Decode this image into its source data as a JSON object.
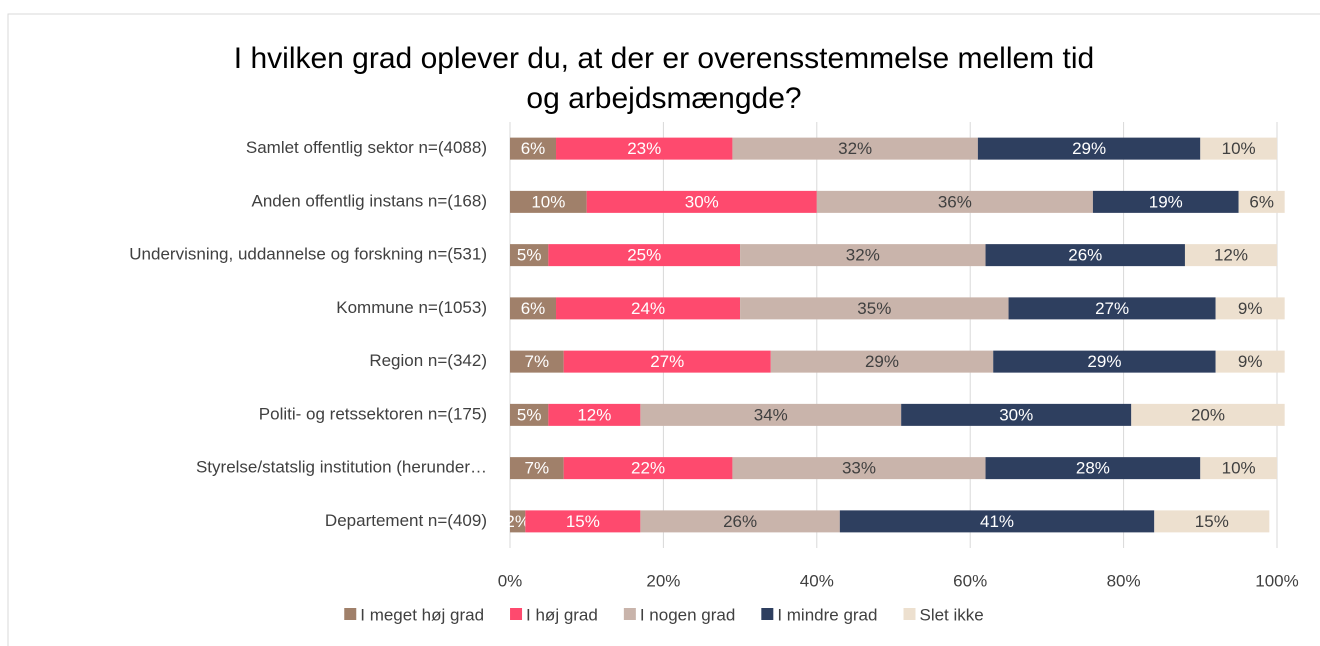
{
  "chart_data": {
    "type": "stacked-bar-horizontal",
    "title": [
      "I hvilken grad oplever du, at der er overensstemmelse mellem tid",
      "og arbejdsmængde?"
    ],
    "categories": [
      "Samlet offentlig sektor n=(4088)",
      "Anden offentlig instans n=(168)",
      "Undervisning, uddannelse og forskning n=(531)",
      "Kommune n=(1053)",
      "Region n=(342)",
      "Politi- og retssektoren n=(175)",
      "Styrelse/statslig institution (herunder…",
      "Departement n=(409)"
    ],
    "series": [
      {
        "name": "I meget høj grad",
        "color": "#a0806a",
        "values": [
          6,
          10,
          5,
          6,
          7,
          5,
          7,
          2
        ],
        "value_labels": [
          "6%",
          "10%",
          "5%",
          "6%",
          "7%",
          "5%",
          "7%",
          "2%"
        ]
      },
      {
        "name": "I høj grad",
        "color": "#fe4a6e",
        "values": [
          23,
          30,
          25,
          24,
          27,
          12,
          22,
          15
        ],
        "value_labels": [
          "23%",
          "30%",
          "25%",
          "24%",
          "27%",
          "12%",
          "22%",
          "15%"
        ]
      },
      {
        "name": "I nogen grad",
        "color": "#c9b4ab",
        "values": [
          32,
          36,
          32,
          35,
          29,
          34,
          33,
          26
        ],
        "value_labels": [
          "32%",
          "36%",
          "32%",
          "35%",
          "29%",
          "34%",
          "33%",
          "26%"
        ]
      },
      {
        "name": "I mindre grad",
        "color": "#2e3f5f",
        "values": [
          29,
          19,
          26,
          27,
          29,
          30,
          28,
          41
        ],
        "value_labels": [
          "29%",
          "19%",
          "26%",
          "27%",
          "29%",
          "30%",
          "28%",
          "41%"
        ]
      },
      {
        "name": "Slet ikke",
        "color": "#ede0cf",
        "values": [
          10,
          6,
          12,
          9,
          9,
          20,
          10,
          15
        ],
        "value_labels": [
          "10%",
          "6%",
          "12%",
          "9%",
          "9%",
          "20%",
          "10%",
          "15%"
        ]
      }
    ],
    "xlim": [
      0,
      100
    ],
    "xticks": [
      {
        "value": 0,
        "label": "0%"
      },
      {
        "value": 20,
        "label": "20%"
      },
      {
        "value": 40,
        "label": "40%"
      },
      {
        "value": 60,
        "label": "60%"
      },
      {
        "value": 80,
        "label": "80%"
      },
      {
        "value": 100,
        "label": "100%"
      }
    ],
    "grid": true,
    "legend": "bottom"
  }
}
